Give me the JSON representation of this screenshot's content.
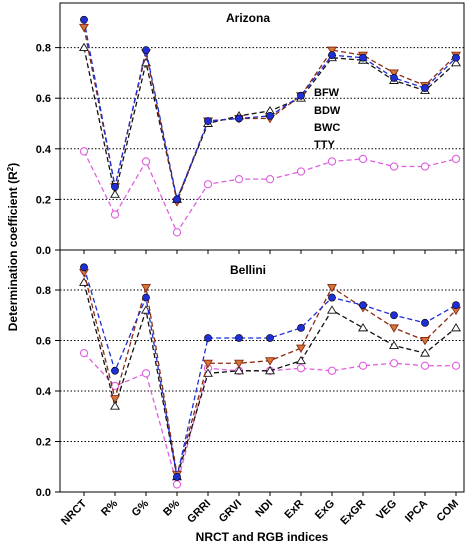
{
  "figure": {
    "xlabel": "NRCT and RGB indices",
    "ylabel_main": "Determination coefficient (R",
    "ylabel_sup": "2",
    "ylabel_end": ")"
  },
  "legend": [
    "BFW",
    "BDW",
    "BWC",
    "TTY"
  ],
  "colors": {
    "BFW": "#1f2fd6",
    "BDW": "#8b2a10",
    "BWC": "#111111",
    "TTY": "#e060e0",
    "BDW_fill": "#d4763c"
  },
  "chart_data": [
    {
      "type": "line",
      "title": "Arizona",
      "categories": [
        "NRCT",
        "R%",
        "G%",
        "B%",
        "GRRI",
        "GRVI",
        "NDI",
        "ExR",
        "ExG",
        "ExGR",
        "VEG",
        "IPCA",
        "COM"
      ],
      "ylim": [
        0,
        0.9
      ],
      "yticks": [
        "0.0",
        "0.2",
        "0.4",
        "0.6",
        "0.8"
      ],
      "ytick_values": [
        0,
        0.2,
        0.4,
        0.6,
        0.8
      ],
      "grid": "horizontal dotted",
      "legend_position": "right-center",
      "series": [
        {
          "name": "BFW",
          "marker": "circle",
          "values": [
            0.91,
            0.25,
            0.79,
            0.2,
            0.51,
            0.52,
            0.53,
            0.61,
            0.77,
            0.76,
            0.68,
            0.64,
            0.76
          ]
        },
        {
          "name": "BDW",
          "marker": "triangle-down",
          "values": [
            0.88,
            0.25,
            0.78,
            0.19,
            0.51,
            0.52,
            0.52,
            0.61,
            0.79,
            0.77,
            0.7,
            0.65,
            0.77
          ]
        },
        {
          "name": "BWC",
          "marker": "triangle-up",
          "values": [
            0.8,
            0.22,
            0.74,
            0.2,
            0.5,
            0.53,
            0.55,
            0.6,
            0.76,
            0.75,
            0.67,
            0.63,
            0.74
          ]
        },
        {
          "name": "TTY",
          "marker": "circle-open",
          "values": [
            0.39,
            0.14,
            0.35,
            0.07,
            0.26,
            0.28,
            0.28,
            0.31,
            0.35,
            0.36,
            0.33,
            0.33,
            0.36
          ]
        }
      ]
    },
    {
      "type": "line",
      "title": "Bellini",
      "categories": [
        "NRCT",
        "R%",
        "G%",
        "B%",
        "GRRI",
        "GRVI",
        "NDI",
        "ExR",
        "ExG",
        "ExGR",
        "VEG",
        "IPCA",
        "COM"
      ],
      "ylim": [
        0,
        0.9
      ],
      "yticks": [
        "0.0",
        "0.2",
        "0.4",
        "0.6",
        "0.8"
      ],
      "ytick_values": [
        0,
        0.2,
        0.4,
        0.6,
        0.8
      ],
      "grid": "horizontal dotted",
      "series": [
        {
          "name": "BFW",
          "marker": "circle",
          "values": [
            0.89,
            0.48,
            0.77,
            0.06,
            0.61,
            0.61,
            0.61,
            0.65,
            0.77,
            0.74,
            0.7,
            0.67,
            0.74
          ]
        },
        {
          "name": "BDW",
          "marker": "triangle-down",
          "values": [
            0.87,
            0.37,
            0.81,
            0.07,
            0.51,
            0.51,
            0.52,
            0.57,
            0.81,
            0.73,
            0.65,
            0.6,
            0.72
          ]
        },
        {
          "name": "BWC",
          "marker": "triangle-up",
          "values": [
            0.83,
            0.34,
            0.72,
            0.06,
            0.47,
            0.48,
            0.48,
            0.52,
            0.72,
            0.65,
            0.58,
            0.55,
            0.65
          ]
        },
        {
          "name": "TTY",
          "marker": "circle-open",
          "values": [
            0.55,
            0.42,
            0.47,
            0.03,
            0.49,
            0.48,
            0.48,
            0.49,
            0.48,
            0.5,
            0.51,
            0.5,
            0.5
          ]
        }
      ]
    }
  ]
}
